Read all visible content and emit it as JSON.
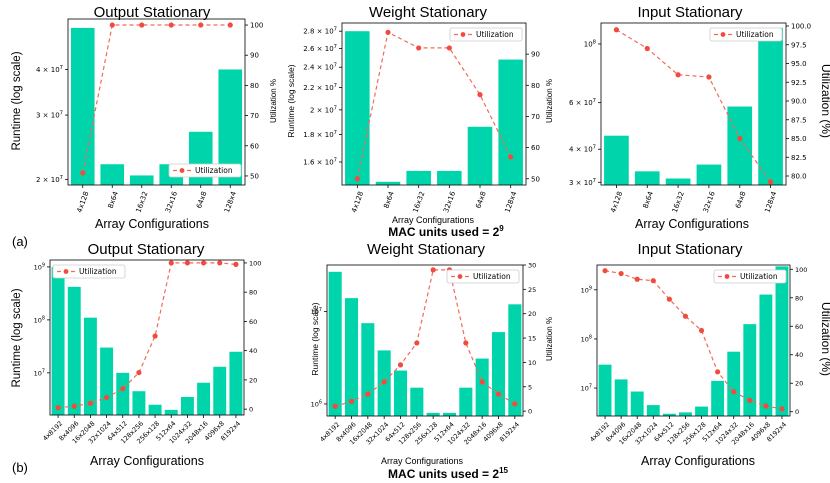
{
  "row_a_label": "(a)",
  "row_b_label": "(b)",
  "caption_a": {
    "text": "MAC units used = 2",
    "exponent": "9"
  },
  "caption_b": {
    "text": "MAC units used = 2",
    "exponent": "15"
  },
  "colors": {
    "bar": "#00d4aa",
    "line": "#f26a5a",
    "marker": "#f24a3e"
  },
  "chart_data": [
    {
      "type": "bar",
      "title": "Output Stationary",
      "xlabel": "Array Configurations",
      "ylabel": "Runtime (log scale)",
      "y2label": "Utilization %",
      "legend_label": "Utilization",
      "legend_loc": "lower-right",
      "categories": [
        "4x128",
        "8x64",
        "16x32",
        "32x16",
        "64x8",
        "128x4"
      ],
      "runtime": [
        52000000,
        22000000,
        20500000,
        22000000,
        27000000,
        40000000
      ],
      "utilization": [
        51,
        100,
        100,
        100,
        100,
        100
      ],
      "ylog": true,
      "ylim": [
        19300000,
        55000000
      ],
      "y2lim": [
        47,
        102
      ],
      "yticks": [
        20000000,
        30000000,
        40000000
      ],
      "ytick_labels": [
        "2 × 10^7",
        "3 × 10^7",
        "4 × 10^7"
      ],
      "y2ticks": [
        50,
        60,
        70,
        80,
        90,
        100
      ],
      "y2tick_labels": [
        "50",
        "60",
        "70",
        "80",
        "90",
        "100"
      ]
    },
    {
      "type": "bar",
      "title": "Weight Stationary",
      "xlabel": "Array Configurations",
      "ylabel": "Runtime (log scale)",
      "y2label": "Utilization %",
      "legend_label": "Utilization",
      "legend_loc": "top-right",
      "categories": [
        "4x128",
        "8x64",
        "16x32",
        "32x16",
        "64x8",
        "128x4"
      ],
      "runtime": [
        28000000,
        14700000,
        15400000,
        15400000,
        18600000,
        24800000
      ],
      "utilization": [
        50,
        97,
        92,
        92,
        77,
        57
      ],
      "ylog": true,
      "ylim": [
        14500000,
        29000000
      ],
      "y2lim": [
        48,
        100
      ],
      "yticks": [
        16000000,
        18000000,
        20000000,
        22000000,
        24000000,
        26000000,
        28000000
      ],
      "ytick_labels": [
        "1.6 × 10^7",
        "1.8 × 10^7",
        "2 × 10^7",
        "2.2 × 10^7",
        "2.4 × 10^7",
        "2.6 × 10^7",
        "2.8 × 10^7"
      ],
      "y2ticks": [
        50,
        60,
        70,
        80,
        90
      ],
      "y2tick_labels": [
        "50",
        "60",
        "70",
        "80",
        "90"
      ]
    },
    {
      "type": "bar",
      "title": "Input Stationary",
      "xlabel": "Array Configurations",
      "ylabel": "",
      "y2label": "Utilization (%)",
      "legend_label": "Utilization",
      "legend_loc": "top-right",
      "categories": [
        "4x128",
        "8x64",
        "16x32",
        "32x16",
        "64x8",
        "128x4"
      ],
      "runtime": [
        45000000,
        33000000,
        31000000,
        35000000,
        58000000,
        115000000
      ],
      "utilization": [
        99.5,
        97,
        93.5,
        93.2,
        85,
        79.2
      ],
      "ylog": true,
      "ylim": [
        29300000,
        120000000
      ],
      "y2lim": [
        78.8,
        100.4
      ],
      "yticks": [
        30000000,
        40000000,
        60000000,
        100000000
      ],
      "ytick_labels": [
        "3 × 10^7",
        "4 × 10^7",
        "6 × 10^7",
        "10^8"
      ],
      "y2ticks": [
        80,
        82.5,
        85,
        87.5,
        90,
        92.5,
        95,
        97.5,
        100
      ],
      "y2tick_labels": [
        "80.0",
        "82.5",
        "85.0",
        "87.5",
        "90.0",
        "92.5",
        "95.0",
        "97.5",
        "100.0"
      ]
    },
    {
      "type": "bar",
      "title": "Output Stationary",
      "xlabel": "Array Configurations",
      "ylabel": "Runtime (log scale)",
      "y2label": "",
      "legend_label": "Utilization",
      "legend_loc": "top-left",
      "categories": [
        "4x8192",
        "8x4096",
        "16x2048",
        "32x1024",
        "64x512",
        "128x256",
        "256x128",
        "512x64",
        "1024x32",
        "2048x16",
        "4096x8",
        "8192x4"
      ],
      "runtime": [
        1000000000,
        420000000,
        110000000,
        30000000,
        10000000,
        4500000,
        2500000,
        2000000,
        3500000,
        6500000,
        13000000,
        25000000
      ],
      "utilization": [
        1,
        2,
        4,
        8,
        14,
        25,
        50,
        100,
        100,
        100,
        100,
        99
      ],
      "ylog": true,
      "ylim": [
        1600000,
        1350000000
      ],
      "y2lim": [
        -4,
        102
      ],
      "yticks": [
        10000000,
        100000000,
        1000000000
      ],
      "ytick_labels": [
        "10^7",
        "10^8",
        "10^9"
      ],
      "y2ticks": [
        0,
        20,
        40,
        60,
        80,
        100
      ],
      "y2tick_labels": [
        "0",
        "20",
        "40",
        "60",
        "80",
        "100"
      ]
    },
    {
      "type": "bar",
      "title": "Weight Stationary",
      "xlabel": "Array Configurations",
      "ylabel": "Runtime (log scale)",
      "y2label": "Utilization %",
      "legend_label": "Utilization",
      "legend_loc": "top-right",
      "categories": [
        "4x8192",
        "8x4096",
        "16x2048",
        "32x1024",
        "64x512",
        "128x256",
        "256x128",
        "512x64",
        "1024x32",
        "2048x16",
        "4096x8",
        "8192x4"
      ],
      "runtime": [
        27000000,
        14000000,
        7500000,
        3800000,
        2300000,
        1500000,
        800000,
        800000,
        1500000,
        3100000,
        6000000,
        12000000
      ],
      "utilization": [
        1,
        2,
        3.5,
        6,
        9.5,
        14,
        29,
        29,
        14,
        6,
        3.5,
        1.5
      ],
      "ylog": true,
      "ylim": [
        740000,
        32000000
      ],
      "y2lim": [
        -1,
        30
      ],
      "yticks": [
        1000000,
        10000000
      ],
      "ytick_labels": [
        "10^6",
        "10^7"
      ],
      "y2ticks": [
        0,
        5,
        10,
        15,
        20,
        25,
        30
      ],
      "y2tick_labels": [
        "0",
        "5",
        "10",
        "15",
        "20",
        "25",
        "30"
      ]
    },
    {
      "type": "bar",
      "title": "Input Stationary",
      "xlabel": "Array Configurations",
      "ylabel": "",
      "y2label": "Utilization (%)",
      "legend_label": "Utilization",
      "legend_loc": "top-right",
      "categories": [
        "4x8192",
        "8x4096",
        "16x2048",
        "32x1024",
        "64x512",
        "128x256",
        "256x128",
        "512x64",
        "1024x32",
        "2048x16",
        "4096x8",
        "8192x4"
      ],
      "runtime": [
        30000000,
        15000000,
        8500000,
        4500000,
        3000000,
        3200000,
        4200000,
        14000000,
        55000000,
        200000000,
        800000000,
        3000000000
      ],
      "utilization": [
        99,
        97,
        93,
        92,
        79,
        67,
        57,
        28,
        14,
        8,
        4,
        2
      ],
      "ylog": true,
      "ylim": [
        2700000,
        3200000000
      ],
      "y2lim": [
        -3,
        103
      ],
      "yticks": [
        10000000,
        100000000,
        1000000000
      ],
      "ytick_labels": [
        "10^7",
        "10^8",
        "10^9"
      ],
      "y2ticks": [
        0,
        20,
        40,
        60,
        80,
        100
      ],
      "y2tick_labels": [
        "0",
        "20",
        "40",
        "60",
        "80",
        "100"
      ]
    }
  ]
}
